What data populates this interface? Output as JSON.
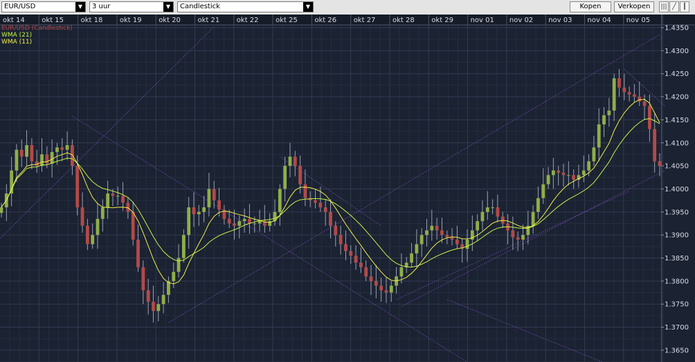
{
  "toolbar": {
    "symbol": "EUR/USD",
    "interval": "3 uur",
    "chart_style": "Candlestick",
    "buy_label": "Kopen",
    "sell_label": "Verkopen",
    "icons": [
      "bar-chart-icon",
      "line-chart-icon",
      "candle-chart-icon"
    ]
  },
  "colors": {
    "background": "#1b2232",
    "grid": "#2c3549",
    "up_candle": "#8fae4a",
    "down_candle": "#b24a48",
    "wma21": "#c7f248",
    "wma11": "#f0f048",
    "trendline": "#8a57c8"
  },
  "chart_data": {
    "type": "candlestick",
    "instrument": "EUR/USD",
    "interval": "3 uur",
    "legend": [
      "EUR/USD (Candlestick)",
      "WMA (21)",
      "WMA (11)"
    ],
    "legend_position": "top-left",
    "grid": true,
    "x_tick_labels": [
      "okt 14",
      "okt 15",
      "okt 18",
      "okt 19",
      "okt 20",
      "okt 21",
      "okt 22",
      "okt 25",
      "okt 26",
      "okt 27",
      "okt 28",
      "okt 29",
      "nov 01",
      "nov 02",
      "nov 03",
      "nov 04",
      "nov 05"
    ],
    "y_tick_labels": [
      "1.4350",
      "1.4300",
      "1.4250",
      "1.4200",
      "1.4150",
      "1.4100",
      "1.4050",
      "1.4000",
      "1.3950",
      "1.3900",
      "1.3850",
      "1.3800",
      "1.3750",
      "1.3700",
      "1.3650"
    ],
    "ylim": [
      1.3628,
      1.4355
    ],
    "closes": [
      1.396,
      1.399,
      1.404,
      1.4085,
      1.407,
      1.4095,
      1.406,
      1.405,
      1.4075,
      1.4055,
      1.408,
      1.409,
      1.4085,
      1.4095,
      1.405,
      1.396,
      1.392,
      1.388,
      1.39,
      1.3935,
      1.396,
      1.399,
      1.3985,
      1.3985,
      1.397,
      1.395,
      1.389,
      1.383,
      1.378,
      1.3755,
      1.3735,
      1.375,
      1.377,
      1.38,
      1.382,
      1.385,
      1.39,
      1.396,
      1.3945,
      1.395,
      1.396,
      1.4,
      1.3975,
      1.3955,
      1.3935,
      1.3925,
      1.392,
      1.393,
      1.3935,
      1.3925,
      1.3925,
      1.393,
      1.392,
      1.393,
      1.395,
      1.4,
      1.405,
      1.407,
      1.405,
      1.401,
      1.398,
      1.3975,
      1.397,
      1.396,
      1.395,
      1.392,
      1.39,
      1.388,
      1.3865,
      1.3855,
      1.384,
      1.383,
      1.381,
      1.38,
      1.379,
      1.378,
      1.3775,
      1.379,
      1.381,
      1.383,
      1.384,
      1.386,
      1.388,
      1.39,
      1.391,
      1.392,
      1.391,
      1.39,
      1.3895,
      1.389,
      1.388,
      1.387,
      1.389,
      1.391,
      1.393,
      1.395,
      1.396,
      1.396,
      1.394,
      1.3925,
      1.391,
      1.3895,
      1.389,
      1.39,
      1.392,
      1.395,
      1.398,
      1.401,
      1.403,
      1.404,
      1.4035,
      1.403,
      1.403,
      1.402,
      1.403,
      1.404,
      1.406,
      1.409,
      1.414,
      1.416,
      1.417,
      1.424,
      1.422,
      1.421,
      1.4205,
      1.42,
      1.419,
      1.418,
      1.413,
      1.406,
      1.405
    ]
  }
}
